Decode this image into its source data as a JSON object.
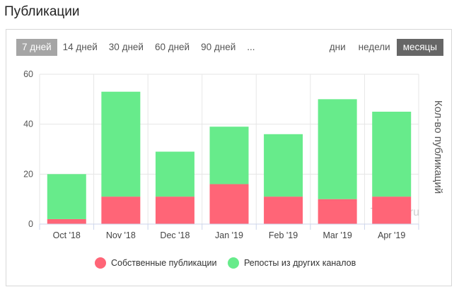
{
  "page": {
    "title": "Публикации"
  },
  "range_tabs": [
    {
      "label": "7 дней",
      "active": true
    },
    {
      "label": "14 дней",
      "active": false
    },
    {
      "label": "30 дней",
      "active": false
    },
    {
      "label": "60 дней",
      "active": false
    },
    {
      "label": "90 дней",
      "active": false
    },
    {
      "label": "...",
      "active": false
    }
  ],
  "group_tabs": [
    {
      "label": "дни",
      "active": false
    },
    {
      "label": "недели",
      "active": false
    },
    {
      "label": "месяцы",
      "active": true
    }
  ],
  "watermark": "TGStat.ru",
  "colors": {
    "own": "#ff6577",
    "reposts": "#67eb8b",
    "grid": "#e6e6e6",
    "axis": "#ccd6eb"
  },
  "chart_data": {
    "type": "bar",
    "stacked": true,
    "categories": [
      "Oct '18",
      "Nov '18",
      "Dec '18",
      "Jan '19",
      "Feb '19",
      "Mar '19",
      "Apr '19"
    ],
    "series": [
      {
        "name": "Собственные публикации",
        "values": [
          2,
          11,
          11,
          16,
          11,
          10,
          11
        ]
      },
      {
        "name": "Репосты из других каналов",
        "values": [
          18,
          42,
          18,
          23,
          25,
          40,
          34
        ]
      }
    ],
    "ylabel": "Кол-во публикаций",
    "ylim": [
      0,
      60
    ],
    "yticks": [
      0,
      20,
      40,
      60
    ],
    "grid": true,
    "legend_position": "bottom"
  }
}
